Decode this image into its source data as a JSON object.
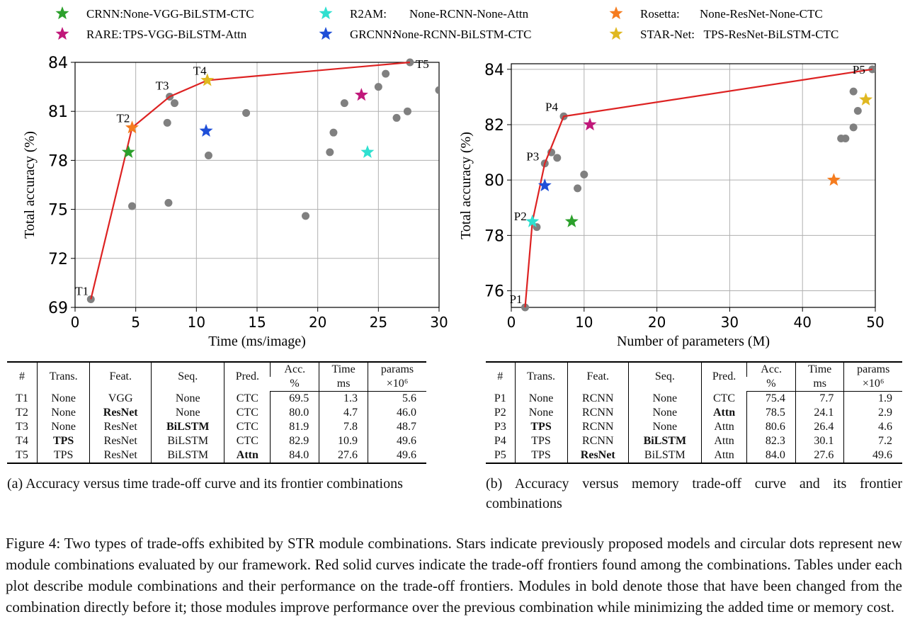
{
  "legend": [
    {
      "name": "CRNN:",
      "desc": "None-VGG-BiLSTM-CTC",
      "color": "#2ca02c"
    },
    {
      "name": "RARE:",
      "desc": "TPS-VGG-BiLSTM-Attn",
      "color": "#c0187a"
    },
    {
      "name": "R2AM:",
      "desc": "None-RCNN-None-Attn",
      "color": "#2fe0d0"
    },
    {
      "name": "GRCNN:",
      "desc": "None-RCNN-BiLSTM-CTC",
      "color": "#1f4fd8"
    },
    {
      "name": "Rosetta:",
      "desc": "None-ResNet-None-CTC",
      "color": "#f57c1f"
    },
    {
      "name": "STAR-Net:",
      "desc": "TPS-ResNet-BiLSTM-CTC",
      "color": "#e0b820"
    }
  ],
  "colors": {
    "frontier": "#dd2222",
    "dot": "#808080",
    "grid": "#b0b0b0"
  },
  "chart_data": [
    {
      "type": "scatter",
      "xlabel": "Time (ms/image)",
      "ylabel": "Total accuracy (%)",
      "xlim": [
        0,
        30
      ],
      "ylim": [
        69,
        84
      ],
      "xticks": [
        0,
        5,
        10,
        15,
        20,
        25,
        30
      ],
      "yticks": [
        69,
        72,
        75,
        78,
        81,
        84
      ],
      "grid": true,
      "frontier": [
        {
          "label": "T1",
          "x": 1.3,
          "y": 69.5
        },
        {
          "label": "T2",
          "x": 4.7,
          "y": 80.0
        },
        {
          "label": "T3",
          "x": 7.8,
          "y": 81.9
        },
        {
          "label": "T4",
          "x": 10.9,
          "y": 82.9
        },
        {
          "label": "T5",
          "x": 27.6,
          "y": 84.0
        }
      ],
      "dots": [
        [
          1.3,
          69.5
        ],
        [
          4.7,
          75.2
        ],
        [
          7.6,
          80.3
        ],
        [
          7.7,
          75.4
        ],
        [
          7.8,
          81.9
        ],
        [
          8.2,
          81.5
        ],
        [
          11.0,
          78.3
        ],
        [
          14.1,
          80.9
        ],
        [
          19.0,
          74.6
        ],
        [
          21.0,
          78.5
        ],
        [
          21.3,
          79.7
        ],
        [
          22.2,
          81.5
        ],
        [
          25.0,
          82.5
        ],
        [
          25.6,
          83.3
        ],
        [
          26.5,
          80.6
        ],
        [
          27.4,
          81.0
        ],
        [
          27.6,
          84.0
        ],
        [
          30.0,
          82.3
        ]
      ],
      "stars": [
        {
          "model": "CRNN",
          "x": 4.4,
          "y": 78.5
        },
        {
          "model": "Rosetta",
          "x": 4.7,
          "y": 80.0
        },
        {
          "model": "STAR-Net",
          "x": 10.9,
          "y": 82.9
        },
        {
          "model": "GRCNN",
          "x": 10.8,
          "y": 79.8
        },
        {
          "model": "RARE",
          "x": 23.6,
          "y": 82.0
        },
        {
          "model": "R2AM",
          "x": 24.1,
          "y": 78.5
        }
      ]
    },
    {
      "type": "scatter",
      "xlabel": "Number of parameters (M)",
      "ylabel": "Total accuracy (%)",
      "xlim": [
        0,
        50
      ],
      "ylim": [
        75.4,
        84.2
      ],
      "xticks": [
        0,
        10,
        20,
        30,
        40,
        50
      ],
      "yticks": [
        76,
        78,
        80,
        82,
        84
      ],
      "grid": true,
      "frontier": [
        {
          "label": "P1",
          "x": 1.9,
          "y": 75.4
        },
        {
          "label": "P2",
          "x": 2.9,
          "y": 78.5
        },
        {
          "label": "P3",
          "x": 4.6,
          "y": 80.6
        },
        {
          "label": "P4",
          "x": 7.2,
          "y": 82.3
        },
        {
          "label": "P5",
          "x": 49.6,
          "y": 84.0
        }
      ],
      "dots": [
        [
          1.9,
          75.4
        ],
        [
          3.5,
          78.3
        ],
        [
          4.6,
          80.6
        ],
        [
          5.5,
          81.0
        ],
        [
          6.3,
          80.8
        ],
        [
          7.2,
          82.3
        ],
        [
          9.1,
          79.7
        ],
        [
          10.0,
          80.2
        ],
        [
          45.3,
          81.5
        ],
        [
          45.9,
          81.5
        ],
        [
          47.0,
          81.9
        ],
        [
          47.0,
          83.2
        ],
        [
          47.6,
          82.5
        ],
        [
          49.6,
          84.0
        ]
      ],
      "stars": [
        {
          "model": "R2AM",
          "x": 2.9,
          "y": 78.5
        },
        {
          "model": "GRCNN",
          "x": 4.6,
          "y": 79.8
        },
        {
          "model": "CRNN",
          "x": 8.3,
          "y": 78.5
        },
        {
          "model": "RARE",
          "x": 10.8,
          "y": 82.0
        },
        {
          "model": "Rosetta",
          "x": 44.3,
          "y": 80.0
        },
        {
          "model": "STAR-Net",
          "x": 48.7,
          "y": 82.9
        }
      ]
    }
  ],
  "table_headers": {
    "num": "#",
    "trans": "Trans.",
    "feat": "Feat.",
    "seq": "Seq.",
    "pred": "Pred.",
    "acc1": "Acc.",
    "acc2": "%",
    "time1": "Time",
    "time2": "ms",
    "params1": "params",
    "params2": "×10⁶"
  },
  "table_a": [
    {
      "id": "T1",
      "trans": "None",
      "feat": "VGG",
      "seq": "None",
      "pred": "CTC",
      "acc": "69.5",
      "time": "1.3",
      "params": "5.6",
      "bold": []
    },
    {
      "id": "T2",
      "trans": "None",
      "feat": "ResNet",
      "seq": "None",
      "pred": "CTC",
      "acc": "80.0",
      "time": "4.7",
      "params": "46.0",
      "bold": [
        "feat"
      ]
    },
    {
      "id": "T3",
      "trans": "None",
      "feat": "ResNet",
      "seq": "BiLSTM",
      "pred": "CTC",
      "acc": "81.9",
      "time": "7.8",
      "params": "48.7",
      "bold": [
        "seq"
      ]
    },
    {
      "id": "T4",
      "trans": "TPS",
      "feat": "ResNet",
      "seq": "BiLSTM",
      "pred": "CTC",
      "acc": "82.9",
      "time": "10.9",
      "params": "49.6",
      "bold": [
        "trans"
      ]
    },
    {
      "id": "T5",
      "trans": "TPS",
      "feat": "ResNet",
      "seq": "BiLSTM",
      "pred": "Attn",
      "acc": "84.0",
      "time": "27.6",
      "params": "49.6",
      "bold": [
        "pred"
      ]
    }
  ],
  "table_b": [
    {
      "id": "P1",
      "trans": "None",
      "feat": "RCNN",
      "seq": "None",
      "pred": "CTC",
      "acc": "75.4",
      "time": "7.7",
      "params": "1.9",
      "bold": []
    },
    {
      "id": "P2",
      "trans": "None",
      "feat": "RCNN",
      "seq": "None",
      "pred": "Attn",
      "acc": "78.5",
      "time": "24.1",
      "params": "2.9",
      "bold": [
        "pred"
      ]
    },
    {
      "id": "P3",
      "trans": "TPS",
      "feat": "RCNN",
      "seq": "None",
      "pred": "Attn",
      "acc": "80.6",
      "time": "26.4",
      "params": "4.6",
      "bold": [
        "trans"
      ]
    },
    {
      "id": "P4",
      "trans": "TPS",
      "feat": "RCNN",
      "seq": "BiLSTM",
      "pred": "Attn",
      "acc": "82.3",
      "time": "30.1",
      "params": "7.2",
      "bold": [
        "seq"
      ]
    },
    {
      "id": "P5",
      "trans": "TPS",
      "feat": "ResNet",
      "seq": "BiLSTM",
      "pred": "Attn",
      "acc": "84.0",
      "time": "27.6",
      "params": "49.6",
      "bold": [
        "feat"
      ]
    }
  ],
  "captions": {
    "a": "(a) Accuracy versus time trade-off curve and its frontier combinations",
    "b": "(b) Accuracy versus memory trade-off curve and its frontier combinations",
    "figure": "Figure 4: Two types of trade-offs exhibited by STR module combinations. Stars indicate previously proposed models and circular dots represent new module combinations evaluated by our framework. Red solid curves indicate the trade-off frontiers found among the combinations. Tables under each plot describe module combinations and their performance on the trade-off frontiers. Modules in bold denote those that have been changed from the combination directly before it; those modules improve performance over the previous combination while minimizing the added time or memory cost."
  }
}
